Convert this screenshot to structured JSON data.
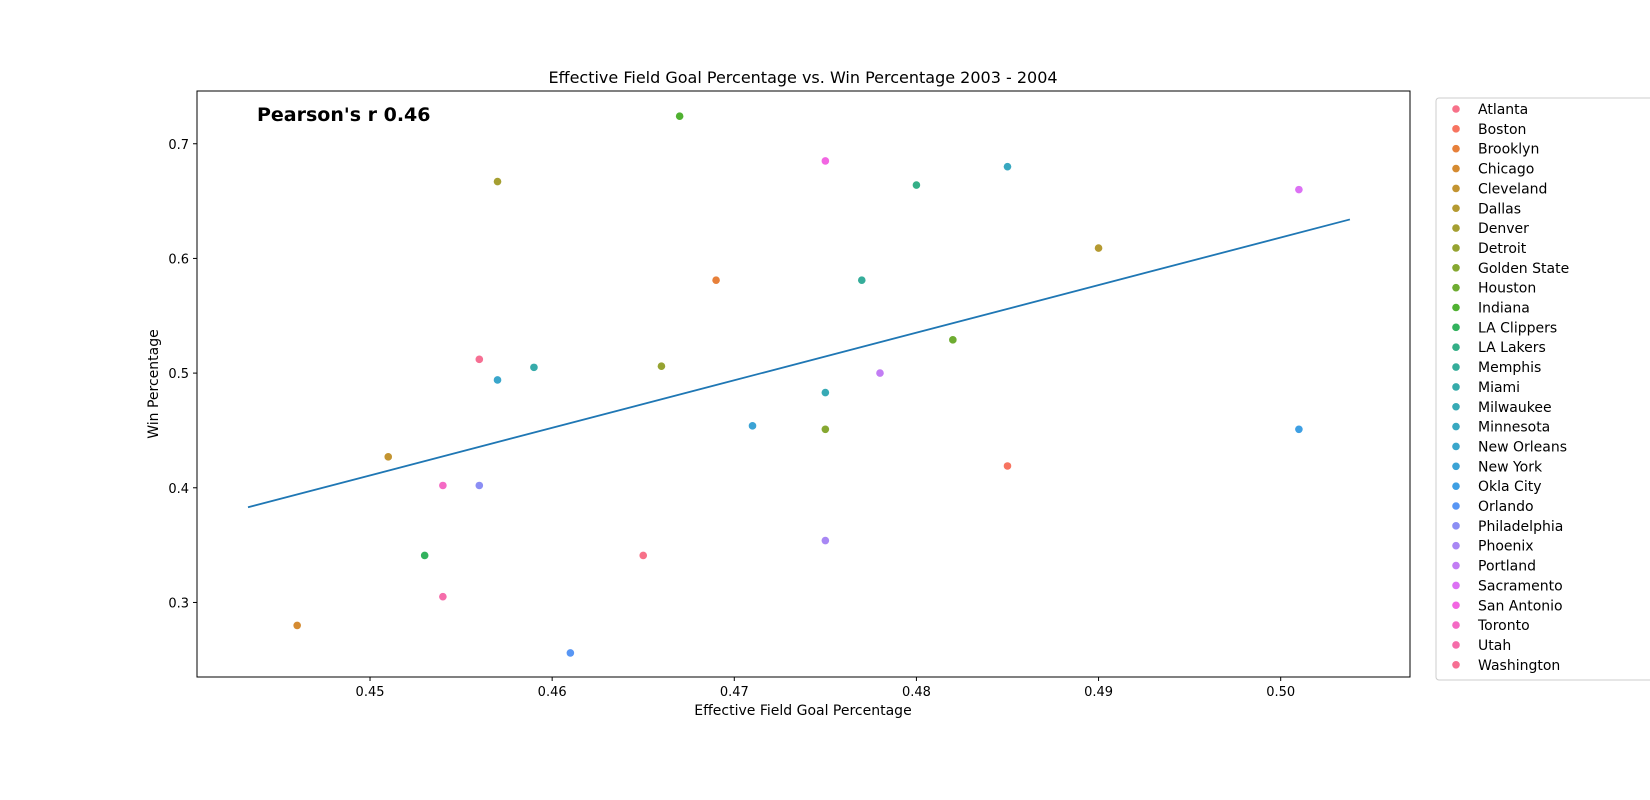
{
  "chart_data": {
    "type": "scatter",
    "title": "Effective Field Goal Percentage vs. Win Percentage 2003 - 2004",
    "xlabel": "Effective Field Goal Percentage",
    "ylabel": "Win Percentage",
    "xlim": [
      0.4405,
      0.5071
    ],
    "ylim": [
      0.235,
      0.746
    ],
    "xticks": [
      0.45,
      0.46,
      0.47,
      0.48,
      0.49,
      0.5
    ],
    "xtick_labels": [
      "0.45",
      "0.46",
      "0.47",
      "0.48",
      "0.49",
      "0.50"
    ],
    "yticks": [
      0.3,
      0.4,
      0.5,
      0.6,
      0.7
    ],
    "ytick_labels": [
      "0.3",
      "0.4",
      "0.5",
      "0.6",
      "0.7"
    ],
    "grid": false,
    "legend_position": "outside-right",
    "annotation": {
      "text": "Pearson's r 0.46",
      "color": "#ff0000"
    },
    "regression_line": {
      "color": "#1f77b4",
      "x": [
        0.4433,
        0.5038
      ],
      "y": [
        0.383,
        0.634
      ]
    },
    "series": [
      {
        "name": "Atlanta",
        "color": "#f77189",
        "x": 0.465,
        "y": 0.341
      },
      {
        "name": "Boston",
        "color": "#f77460",
        "x": 0.485,
        "y": 0.419
      },
      {
        "name": "Brooklyn",
        "color": "#e7803a",
        "x": 0.469,
        "y": 0.581
      },
      {
        "name": "Chicago",
        "color": "#d58b31",
        "x": 0.446,
        "y": 0.28
      },
      {
        "name": "Cleveland",
        "color": "#c39431",
        "x": 0.451,
        "y": 0.427
      },
      {
        "name": "Dallas",
        "color": "#b59a31",
        "x": 0.49,
        "y": 0.609
      },
      {
        "name": "Denver",
        "color": "#a59f31",
        "x": 0.457,
        "y": 0.667
      },
      {
        "name": "Detroit",
        "color": "#96a331",
        "x": 0.466,
        "y": 0.506
      },
      {
        "name": "Golden State",
        "color": "#86a831",
        "x": 0.475,
        "y": 0.451
      },
      {
        "name": "Houston",
        "color": "#6eac31",
        "x": 0.482,
        "y": 0.529
      },
      {
        "name": "Indiana",
        "color": "#50b131",
        "x": 0.467,
        "y": 0.724
      },
      {
        "name": "LA Clippers",
        "color": "#32b25d",
        "x": 0.453,
        "y": 0.341
      },
      {
        "name": "LA Lakers",
        "color": "#34af87",
        "x": 0.48,
        "y": 0.664
      },
      {
        "name": "Memphis",
        "color": "#35ad9a",
        "x": 0.477,
        "y": 0.581
      },
      {
        "name": "Miami",
        "color": "#36abaa",
        "x": 0.459,
        "y": 0.505
      },
      {
        "name": "Milwaukee",
        "color": "#37aab5",
        "x": 0.475,
        "y": 0.483
      },
      {
        "name": "Minnesota",
        "color": "#38a8c0",
        "x": 0.485,
        "y": 0.68
      },
      {
        "name": "New Orleans",
        "color": "#3aa6cb",
        "x": 0.457,
        "y": 0.494
      },
      {
        "name": "New York",
        "color": "#3ba3d5",
        "x": 0.471,
        "y": 0.454
      },
      {
        "name": "Okla City",
        "color": "#3e9fe3",
        "x": 0.501,
        "y": 0.451
      },
      {
        "name": "Orlando",
        "color": "#5896f4",
        "x": 0.461,
        "y": 0.256
      },
      {
        "name": "Philadelphia",
        "color": "#8b8ef4",
        "x": 0.456,
        "y": 0.402
      },
      {
        "name": "Phoenix",
        "color": "#a887f4",
        "x": 0.475,
        "y": 0.354
      },
      {
        "name": "Portland",
        "color": "#c27df4",
        "x": 0.478,
        "y": 0.5
      },
      {
        "name": "Sacramento",
        "color": "#dc71f4",
        "x": 0.501,
        "y": 0.66
      },
      {
        "name": "San Antonio",
        "color": "#f266e2",
        "x": 0.475,
        "y": 0.685
      },
      {
        "name": "Toronto",
        "color": "#f46ac4",
        "x": 0.454,
        "y": 0.402
      },
      {
        "name": "Utah",
        "color": "#f56daa",
        "x": 0.454,
        "y": 0.305
      },
      {
        "name": "Washington",
        "color": "#f66f93",
        "x": 0.456,
        "y": 0.512
      }
    ]
  }
}
